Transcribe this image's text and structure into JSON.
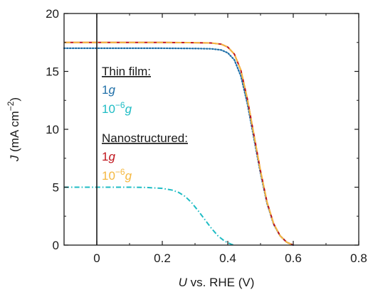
{
  "chart_data": {
    "type": "line",
    "xlabel": {
      "var": "U",
      "rest": " vs. RHE (V)"
    },
    "ylabel": {
      "var": "J",
      "rest": " (mA cm",
      "sup": "−2",
      "close": ")"
    },
    "xlim": [
      -0.1,
      0.8
    ],
    "ylim": [
      0,
      20
    ],
    "xticks": [
      0,
      0.2,
      0.4,
      0.6,
      0.8
    ],
    "xtick_labels": [
      "0",
      "0.2",
      "0.4",
      "0.6",
      "0.8"
    ],
    "yticks": [
      0,
      5,
      10,
      15,
      20
    ],
    "ytick_labels": [
      "0",
      "5",
      "10",
      "15",
      "20"
    ],
    "grid": false,
    "vertical_reference_line_x": 0,
    "legend_position": "upper-left, inside",
    "legend_groups": [
      {
        "heading": "Thin film:",
        "entries": [
          {
            "base": "1",
            "sup": "",
            "var": "g",
            "color": "#1f6fa8"
          },
          {
            "base": "10",
            "sup": "−6",
            "var": "g",
            "color": "#1fbcc4"
          }
        ]
      },
      {
        "heading": "Nanostructured:",
        "entries": [
          {
            "base": "1",
            "sup": "",
            "var": "g",
            "color": "#c0141c"
          },
          {
            "base": "10",
            "sup": "−6",
            "var": "g",
            "color": "#f5b840"
          }
        ]
      }
    ],
    "series": [
      {
        "color": "#1f6fa8",
        "style": "dotted",
        "x": [
          -0.1,
          0.0,
          0.1,
          0.2,
          0.3,
          0.35,
          0.38,
          0.4,
          0.42,
          0.44,
          0.46,
          0.48,
          0.5,
          0.52,
          0.54,
          0.56,
          0.58,
          0.6
        ],
        "y": [
          17.0,
          17.0,
          17.0,
          17.0,
          16.98,
          16.95,
          16.85,
          16.6,
          16.0,
          14.6,
          12.2,
          9.2,
          6.2,
          3.6,
          1.8,
          0.8,
          0.25,
          0.0
        ]
      },
      {
        "color": "#1fbcc4",
        "style": "dashdot",
        "x": [
          -0.1,
          0.0,
          0.1,
          0.15,
          0.2,
          0.23,
          0.25,
          0.27,
          0.29,
          0.31,
          0.33,
          0.35,
          0.37,
          0.39,
          0.41,
          0.42
        ],
        "y": [
          5.0,
          5.0,
          5.0,
          4.98,
          4.9,
          4.75,
          4.55,
          4.2,
          3.65,
          2.95,
          2.2,
          1.45,
          0.8,
          0.35,
          0.08,
          0.0
        ]
      },
      {
        "color": "#c0141c",
        "style": "solid",
        "x": [
          -0.1,
          0.0,
          0.1,
          0.2,
          0.3,
          0.35,
          0.38,
          0.4,
          0.42,
          0.44,
          0.46,
          0.48,
          0.5,
          0.52,
          0.54,
          0.56,
          0.58,
          0.6
        ],
        "y": [
          17.5,
          17.5,
          17.5,
          17.5,
          17.48,
          17.45,
          17.35,
          17.1,
          16.5,
          15.1,
          12.6,
          9.5,
          6.4,
          3.7,
          1.85,
          0.8,
          0.25,
          0.0
        ]
      },
      {
        "color": "#f5b840",
        "style": "dashed",
        "x": [
          -0.1,
          0.0,
          0.1,
          0.2,
          0.3,
          0.35,
          0.38,
          0.4,
          0.42,
          0.44,
          0.46,
          0.48,
          0.5,
          0.52,
          0.54,
          0.56,
          0.58,
          0.6
        ],
        "y": [
          17.5,
          17.5,
          17.5,
          17.5,
          17.48,
          17.45,
          17.35,
          17.1,
          16.5,
          15.1,
          12.6,
          9.5,
          6.4,
          3.7,
          1.85,
          0.8,
          0.25,
          0.0
        ]
      }
    ]
  }
}
